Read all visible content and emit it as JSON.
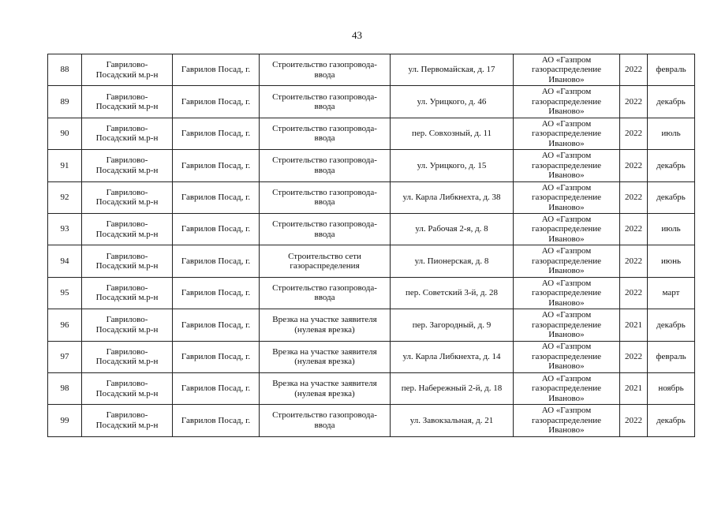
{
  "page_number": "43",
  "rows": [
    {
      "n": "88",
      "district": "Гаврилово-\nПосадский м.р-н",
      "city": "Гаврилов Посад, г.",
      "work": "Строительство газопровода-\nввода",
      "address": "ул. Первомайская, д. 17",
      "org": "АО «Газпром\nгазораспределение\nИваново»",
      "year": "2022",
      "month": "февраль"
    },
    {
      "n": "89",
      "district": "Гаврилово-\nПосадский м.р-н",
      "city": "Гаврилов Посад, г.",
      "work": "Строительство газопровода-\nввода",
      "address": "ул. Урицкого, д. 46",
      "org": "АО «Газпром\nгазораспределение\nИваново»",
      "year": "2022",
      "month": "декабрь"
    },
    {
      "n": "90",
      "district": "Гаврилово-\nПосадский м.р-н",
      "city": "Гаврилов Посад, г.",
      "work": "Строительство газопровода-\nввода",
      "address": "пер. Совхозный, д. 11",
      "org": "АО «Газпром\nгазораспределение\nИваново»",
      "year": "2022",
      "month": "июль"
    },
    {
      "n": "91",
      "district": "Гаврилово-\nПосадский м.р-н",
      "city": "Гаврилов Посад, г.",
      "work": "Строительство газопровода-\nввода",
      "address": "ул. Урицкого, д. 15",
      "org": "АО «Газпром\nгазораспределение\nИваново»",
      "year": "2022",
      "month": "декабрь"
    },
    {
      "n": "92",
      "district": "Гаврилово-\nПосадский м.р-н",
      "city": "Гаврилов Посад, г.",
      "work": "Строительство газопровода-\nввода",
      "address": "ул. Карла Либкнехта, д. 38",
      "org": "АО «Газпром\nгазораспределение\nИваново»",
      "year": "2022",
      "month": "декабрь"
    },
    {
      "n": "93",
      "district": "Гаврилово-\nПосадский м.р-н",
      "city": "Гаврилов Посад, г.",
      "work": "Строительство газопровода-\nввода",
      "address": "ул. Рабочая 2-я, д. 8",
      "org": "АО «Газпром\nгазораспределение\nИваново»",
      "year": "2022",
      "month": "июль"
    },
    {
      "n": "94",
      "district": "Гаврилово-\nПосадский м.р-н",
      "city": "Гаврилов Посад, г.",
      "work": "Строительство сети\nгазораспределения",
      "address": "ул. Пионерская, д. 8",
      "org": "АО «Газпром\nгазораспределение\nИваново»",
      "year": "2022",
      "month": "июнь"
    },
    {
      "n": "95",
      "district": "Гаврилово-\nПосадский м.р-н",
      "city": "Гаврилов Посад, г.",
      "work": "Строительство газопровода-\nввода",
      "address": "пер. Советский 3-й, д. 28",
      "org": "АО «Газпром\nгазораспределение\nИваново»",
      "year": "2022",
      "month": "март"
    },
    {
      "n": "96",
      "district": "Гаврилово-\nПосадский м.р-н",
      "city": "Гаврилов Посад, г.",
      "work": "Врезка на участке заявителя\n(нулевая врезка)",
      "address": "пер. Загородный, д. 9",
      "org": "АО «Газпром\nгазораспределение\nИваново»",
      "year": "2021",
      "month": "декабрь"
    },
    {
      "n": "97",
      "district": "Гаврилово-\nПосадский м.р-н",
      "city": "Гаврилов Посад, г.",
      "work": "Врезка на участке заявителя\n(нулевая врезка)",
      "address": "ул. Карла Либкнехта, д. 14",
      "org": "АО «Газпром\nгазораспределение\nИваново»",
      "year": "2022",
      "month": "февраль"
    },
    {
      "n": "98",
      "district": "Гаврилово-\nПосадский м.р-н",
      "city": "Гаврилов Посад, г.",
      "work": "Врезка на участке заявителя\n(нулевая врезка)",
      "address": "пер. Набережный 2-й, д. 18",
      "org": "АО «Газпром\nгазораспределение\nИваново»",
      "year": "2021",
      "month": "ноябрь"
    },
    {
      "n": "99",
      "district": "Гаврилово-\nПосадский м.р-н",
      "city": "Гаврилов Посад, г.",
      "work": "Строительство газопровода-\nввода",
      "address": "ул. Завокзальная, д. 21",
      "org": "АО «Газпром\nгазораспределение\nИваново»",
      "year": "2022",
      "month": "декабрь"
    }
  ]
}
